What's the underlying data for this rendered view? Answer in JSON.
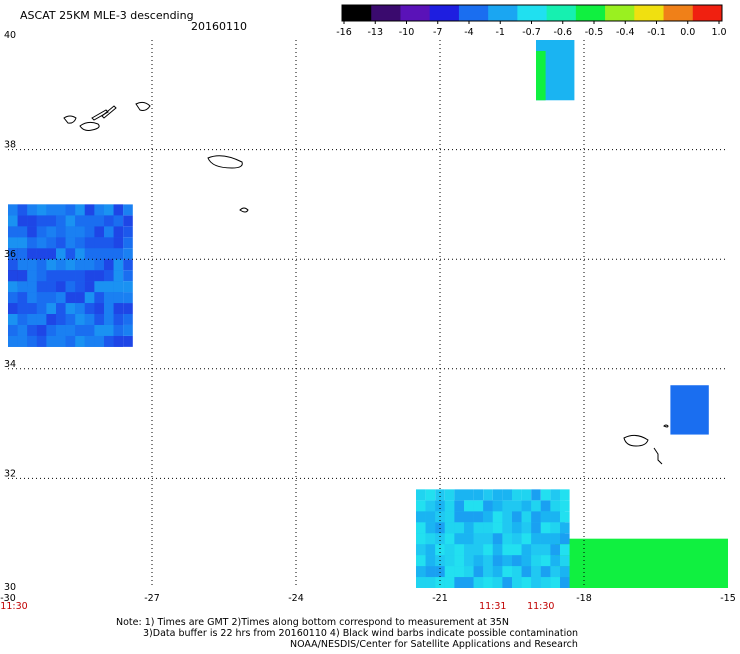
{
  "header": {
    "title": "ASCAT 25KM MLE-3 descending",
    "date": "20160110"
  },
  "colorbar": {
    "labels": [
      "-16",
      "-13",
      "-10",
      "-7",
      "-4",
      "-1",
      "-0.7",
      "-0.6",
      "-0.5",
      "-0.4",
      "-0.1",
      "0.0",
      "1.0"
    ],
    "colors": [
      "#000000",
      "#3a0a6e",
      "#5a12b8",
      "#1e1ee0",
      "#1a6ef0",
      "#1aa6f2",
      "#20e0f0",
      "#16f0b0",
      "#10f040",
      "#9af020",
      "#f0e010",
      "#f08018",
      "#f02010"
    ]
  },
  "chart_data": {
    "type": "heatmap",
    "x_ticks": [
      "-30",
      "-27",
      "-24",
      "-21",
      "-18",
      "-15"
    ],
    "y_ticks": [
      "40",
      "38",
      "36",
      "34",
      "32",
      "30"
    ],
    "xlim": [
      -30,
      -15
    ],
    "ylim": [
      30,
      40
    ],
    "grid": true,
    "time_labels": [
      {
        "lon": -30,
        "text": "11:30"
      },
      {
        "lon": -19.9,
        "text": "11:31"
      },
      {
        "lon": -18.9,
        "text": "11:30"
      }
    ],
    "swaths": [
      {
        "lon": [
          -30.0,
          -27.6
        ],
        "lat": [
          34.4,
          37.0
        ],
        "category": "-10 to -4",
        "color": "#1a6ef0"
      },
      {
        "lon": [
          -30.0,
          -29.6
        ],
        "lat": [
          35.5,
          36.2
        ],
        "category": "-16 to -10",
        "color": "#3a1a9e"
      },
      {
        "lon": [
          -19.0,
          -18.2
        ],
        "lat": [
          38.9,
          40.0
        ],
        "category": "-1 to -0.7",
        "color": "#1ab4f2"
      },
      {
        "lon": [
          -19.0,
          -18.8
        ],
        "lat": [
          38.9,
          39.8
        ],
        "category": "-0.5 to -0.4",
        "color": "#10f040"
      },
      {
        "lon": [
          -16.2,
          -15.4
        ],
        "lat": [
          32.8,
          33.7
        ],
        "category": "-7 to -4",
        "color": "#1a6ef0"
      },
      {
        "lon": [
          -21.5,
          -18.4
        ],
        "lat": [
          30.0,
          31.6
        ],
        "category": "-4 to -0.7",
        "color": "#20c8f2"
      },
      {
        "lon": [
          -18.6,
          -15.0
        ],
        "lat": [
          30.0,
          30.9
        ],
        "category": "-0.5 to -0.4",
        "color": "#10f040"
      }
    ]
  },
  "notes": {
    "line1": "Note: 1) Times are GMT 2)Times along bottom correspond to measurement at 35N",
    "line2": "3)Data buffer is 22 hrs from 20160110 4) Black wind barbs indicate possible contamination",
    "line3": "NOAA/NESDIS/Center for Satellite Applications and Research"
  }
}
